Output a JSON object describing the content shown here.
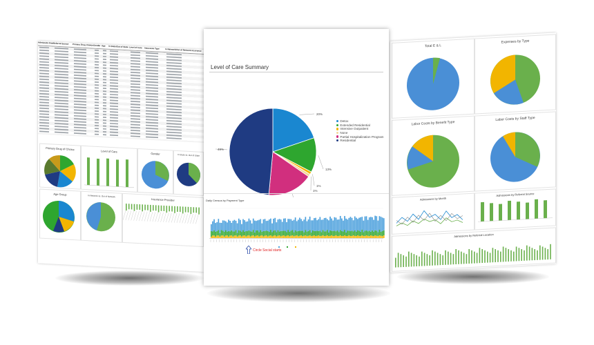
{
  "center": {
    "title": "Level of Care Summary",
    "legend": [
      "Detox",
      "Extended Residential",
      "Intensive Outpatient",
      "None",
      "Partial Hospitalization Program",
      "Residential"
    ],
    "legend_colors": [
      "#1a87d0",
      "#2ea62f",
      "#f2b500",
      "#f2d79a",
      "#d12f7e",
      "#1f3b82"
    ],
    "pct_labels": [
      "20%",
      "13%",
      "1%",
      "1%",
      "17%",
      "49%"
    ],
    "subchart_title": "Daily Census by Payment Type",
    "annotation": "Circle Social starts"
  },
  "left": {
    "sheet_headers": [
      "Admission Date",
      "Referral Source",
      "Primary Drug Choice",
      "Gender",
      "Age",
      "In State/Out of State",
      "Level of Care",
      "Insurance Type",
      "In Network/Out of Network Insurance"
    ],
    "chart_titles": [
      "Primary Drug of Choice",
      "Level of Care",
      "Gender",
      "In State vs. Out of State",
      "Age Group",
      "In Network vs. Out of Network",
      "Insurance Provider"
    ]
  },
  "right": {
    "chart_titles": [
      "Total E & L",
      "Expenses by Type",
      "Labor Costs by Benefit Type",
      "Labor Costs by Staff Type",
      "Admissions by Month",
      "Admissions by Referral Source",
      "Admissions by Referral Location"
    ]
  },
  "chart_data": [
    {
      "type": "pie",
      "title": "Level of Care Summary",
      "categories": [
        "Detox",
        "Extended Residential",
        "Intensive Outpatient",
        "None",
        "Partial Hospitalization Program",
        "Residential"
      ],
      "values": [
        20,
        13,
        1,
        1,
        17,
        49
      ]
    }
  ]
}
